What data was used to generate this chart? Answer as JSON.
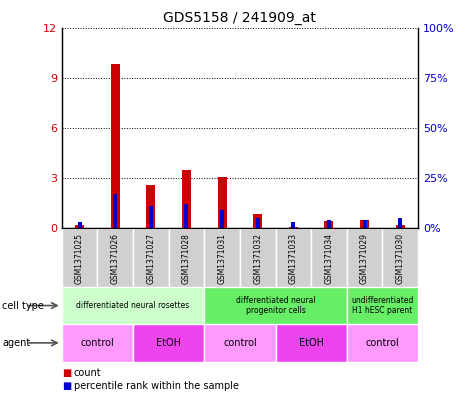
{
  "title": "GDS5158 / 241909_at",
  "samples": [
    "GSM1371025",
    "GSM1371026",
    "GSM1371027",
    "GSM1371028",
    "GSM1371031",
    "GSM1371032",
    "GSM1371033",
    "GSM1371034",
    "GSM1371029",
    "GSM1371030"
  ],
  "count_values": [
    0.18,
    9.8,
    2.55,
    3.45,
    3.05,
    0.85,
    0.05,
    0.4,
    0.45,
    0.18
  ],
  "percentile_values": [
    3,
    17,
    11,
    12,
    9,
    5,
    3,
    4,
    4,
    5
  ],
  "ylim_left": [
    0,
    12
  ],
  "ylim_right": [
    0,
    100
  ],
  "yticks_left": [
    0,
    3,
    6,
    9,
    12
  ],
  "ytick_labels_left": [
    "0",
    "3",
    "6",
    "9",
    "12"
  ],
  "ytick_labels_right": [
    "0%",
    "25%",
    "50%",
    "75%",
    "100%"
  ],
  "bar_color_count": "#cc0000",
  "bar_color_percentile": "#0000cc",
  "cell_type_groups": [
    {
      "label": "differentiated neural rosettes",
      "cols": [
        0,
        1,
        2,
        3
      ],
      "color": "#ccffcc"
    },
    {
      "label": "differentiated neural\nprogenitor cells",
      "cols": [
        4,
        5,
        6,
        7
      ],
      "color": "#66ee66"
    },
    {
      "label": "undifferentiated\nH1 hESC parent",
      "cols": [
        8,
        9
      ],
      "color": "#66ee66"
    }
  ],
  "agent_groups": [
    {
      "label": "control",
      "cols": [
        0,
        1
      ],
      "color": "#ff99ff"
    },
    {
      "label": "EtOH",
      "cols": [
        2,
        3
      ],
      "color": "#ee44ee"
    },
    {
      "label": "control",
      "cols": [
        4,
        5
      ],
      "color": "#ff99ff"
    },
    {
      "label": "EtOH",
      "cols": [
        6,
        7
      ],
      "color": "#ee44ee"
    },
    {
      "label": "control",
      "cols": [
        8,
        9
      ],
      "color": "#ff99ff"
    }
  ],
  "sample_bg_color": "#d0d0d0",
  "bg_color": "#ffffff",
  "bar_color_left": "#cc0000",
  "bar_color_right": "#0000cc"
}
